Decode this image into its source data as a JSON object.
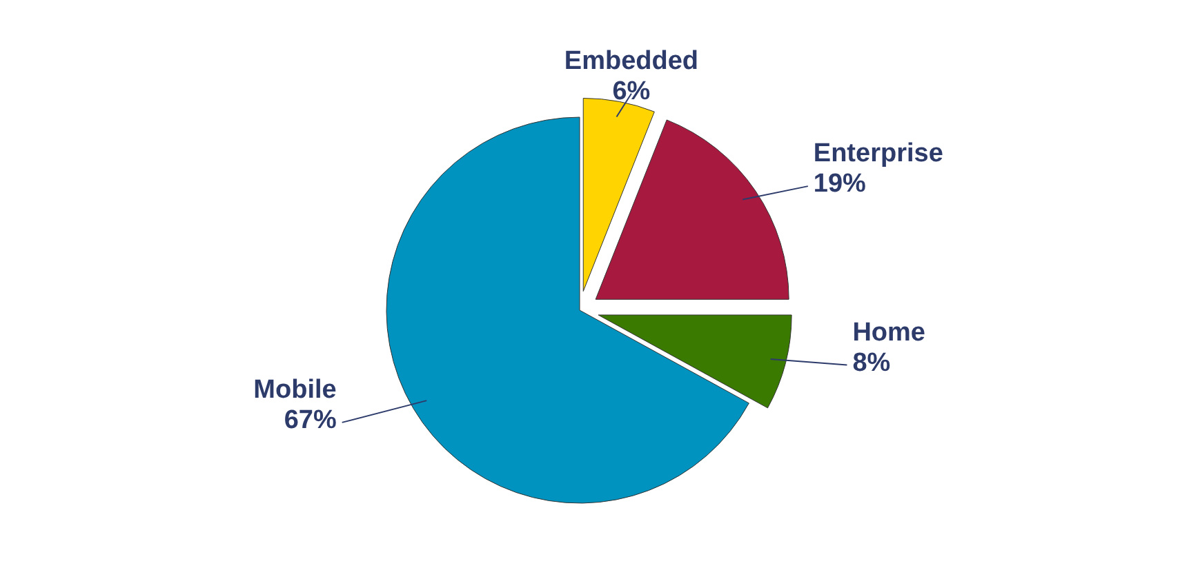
{
  "chart_data": {
    "type": "pie",
    "categories": [
      "Embedded",
      "Enterprise",
      "Home",
      "Mobile"
    ],
    "values": [
      6,
      19,
      8,
      67
    ],
    "value_labels": [
      "6%",
      "19%",
      "8%",
      "67%"
    ],
    "colors": [
      "#ffd400",
      "#a8193f",
      "#3a7a00",
      "#0093c0"
    ],
    "legend": false
  }
}
